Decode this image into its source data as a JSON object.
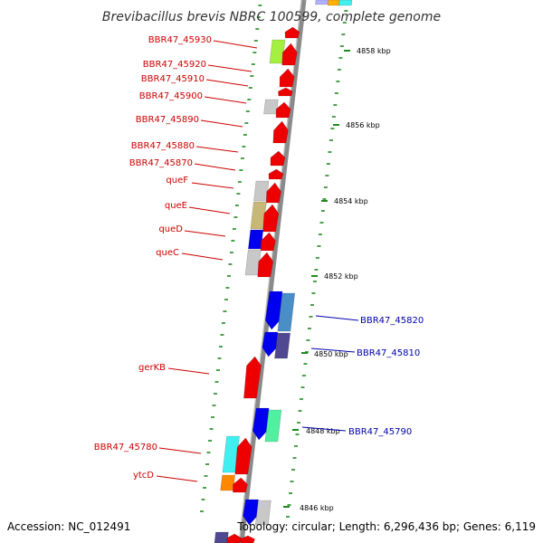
{
  "title": "Brevibacillus brevis NBRC 100599, complete genome",
  "footer": {
    "accession": "Accession: NC_012491",
    "topology": "Topology: circular; Length: 6,296,436 bp; Genes: 6,119"
  },
  "ticks": [
    "4858 kbp",
    "4856 kbp",
    "4854 kbp",
    "4852 kbp",
    "4850 kbp",
    "4848 kbp",
    "4846 kbp"
  ],
  "labels_left": [
    "BBR47_45930",
    "BBR47_45920",
    "BBR47_45910",
    "BBR47_45900",
    "BBR47_45890",
    "BBR47_45880",
    "BBR47_45870",
    "queF",
    "queE",
    "queD",
    "queC",
    "gerKB",
    "BBR47_45780",
    "ytcD"
  ],
  "labels_right": [
    "BBR47_45820",
    "BBR47_45810",
    "BBR47_45790"
  ],
  "colors": {
    "forward_gene": "#ee0000",
    "reverse_gene": "#0000ee",
    "label_left": "#cc0000",
    "label_right": "#0000aa",
    "backbone": "#8a8a8a",
    "tick_mark": "#228822"
  }
}
